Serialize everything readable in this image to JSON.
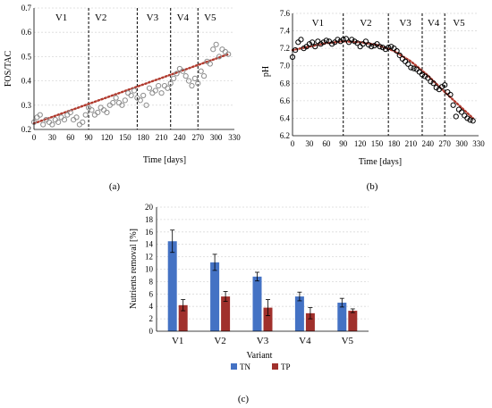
{
  "chart_data": [
    {
      "type": "scatter",
      "panel_label": "(a)",
      "ylabel": "FOS/TAC",
      "xlabel": "Time [days]",
      "xlim": [
        0,
        330
      ],
      "ylim": [
        0.2,
        0.7
      ],
      "xticks": [
        0,
        30,
        60,
        90,
        120,
        150,
        180,
        210,
        240,
        270,
        300,
        330
      ],
      "yticks": [
        0.2,
        0.3,
        0.4,
        0.5,
        0.6,
        0.7
      ],
      "grid": true,
      "marker_color": "#8c8c8c",
      "trend_color": "#b03a2e",
      "divider_positions": [
        90,
        170,
        225,
        270
      ],
      "variant_labels": [
        {
          "text": "V1",
          "x": 45
        },
        {
          "text": "V2",
          "x": 110
        },
        {
          "text": "V3",
          "x": 195
        },
        {
          "text": "V4",
          "x": 245
        },
        {
          "text": "V5",
          "x": 290
        }
      ],
      "trend": [
        [
          0,
          0.225
        ],
        [
          320,
          0.51
        ]
      ],
      "points": [
        [
          0,
          0.23
        ],
        [
          5,
          0.25
        ],
        [
          10,
          0.26
        ],
        [
          15,
          0.22
        ],
        [
          20,
          0.24
        ],
        [
          25,
          0.23
        ],
        [
          30,
          0.22
        ],
        [
          35,
          0.24
        ],
        [
          40,
          0.23
        ],
        [
          45,
          0.25
        ],
        [
          50,
          0.24
        ],
        [
          55,
          0.26
        ],
        [
          60,
          0.27
        ],
        [
          65,
          0.24
        ],
        [
          70,
          0.25
        ],
        [
          75,
          0.22
        ],
        [
          80,
          0.23
        ],
        [
          85,
          0.26
        ],
        [
          90,
          0.29
        ],
        [
          95,
          0.28
        ],
        [
          100,
          0.26
        ],
        [
          105,
          0.27
        ],
        [
          110,
          0.29
        ],
        [
          115,
          0.28
        ],
        [
          120,
          0.27
        ],
        [
          125,
          0.3
        ],
        [
          130,
          0.31
        ],
        [
          135,
          0.33
        ],
        [
          140,
          0.31
        ],
        [
          145,
          0.3
        ],
        [
          150,
          0.32
        ],
        [
          155,
          0.35
        ],
        [
          160,
          0.34
        ],
        [
          165,
          0.36
        ],
        [
          170,
          0.33
        ],
        [
          175,
          0.32
        ],
        [
          180,
          0.34
        ],
        [
          185,
          0.3
        ],
        [
          190,
          0.37
        ],
        [
          195,
          0.35
        ],
        [
          200,
          0.36
        ],
        [
          205,
          0.38
        ],
        [
          210,
          0.35
        ],
        [
          215,
          0.38
        ],
        [
          220,
          0.37
        ],
        [
          225,
          0.39
        ],
        [
          230,
          0.41
        ],
        [
          235,
          0.43
        ],
        [
          240,
          0.45
        ],
        [
          245,
          0.44
        ],
        [
          250,
          0.42
        ],
        [
          255,
          0.4
        ],
        [
          260,
          0.38
        ],
        [
          265,
          0.41
        ],
        [
          270,
          0.39
        ],
        [
          275,
          0.44
        ],
        [
          280,
          0.42
        ],
        [
          285,
          0.48
        ],
        [
          290,
          0.47
        ],
        [
          295,
          0.53
        ],
        [
          300,
          0.55
        ],
        [
          305,
          0.5
        ],
        [
          310,
          0.53
        ],
        [
          315,
          0.52
        ],
        [
          320,
          0.51
        ]
      ]
    },
    {
      "type": "scatter",
      "panel_label": "(b)",
      "ylabel": "pH",
      "xlabel": "Time [days]",
      "xlim": [
        0,
        330
      ],
      "ylim": [
        6.2,
        7.6
      ],
      "xticks": [
        0,
        30,
        60,
        90,
        120,
        150,
        180,
        210,
        240,
        270,
        300,
        330
      ],
      "yticks": [
        6.2,
        6.4,
        6.6,
        6.8,
        7.0,
        7.2,
        7.4,
        7.6
      ],
      "grid": true,
      "marker_color": "#000000",
      "trend_color": "#b03a2e",
      "divider_positions": [
        90,
        170,
        230,
        270
      ],
      "variant_labels": [
        {
          "text": "V1",
          "x": 45
        },
        {
          "text": "V2",
          "x": 130
        },
        {
          "text": "V3",
          "x": 200
        },
        {
          "text": "V4",
          "x": 250
        },
        {
          "text": "V5",
          "x": 295
        }
      ],
      "trend": [
        [
          0,
          7.18
        ],
        [
          30,
          7.22
        ],
        [
          60,
          7.26
        ],
        [
          90,
          7.28
        ],
        [
          120,
          7.27
        ],
        [
          150,
          7.24
        ],
        [
          180,
          7.17
        ],
        [
          210,
          7.05
        ],
        [
          240,
          6.89
        ],
        [
          270,
          6.7
        ],
        [
          300,
          6.52
        ],
        [
          320,
          6.4
        ]
      ],
      "points": [
        [
          0,
          7.1
        ],
        [
          5,
          7.18
        ],
        [
          10,
          7.27
        ],
        [
          15,
          7.3
        ],
        [
          20,
          7.2
        ],
        [
          25,
          7.22
        ],
        [
          30,
          7.25
        ],
        [
          35,
          7.27
        ],
        [
          40,
          7.22
        ],
        [
          45,
          7.28
        ],
        [
          50,
          7.25
        ],
        [
          55,
          7.27
        ],
        [
          60,
          7.29
        ],
        [
          65,
          7.28
        ],
        [
          70,
          7.25
        ],
        [
          75,
          7.27
        ],
        [
          80,
          7.3
        ],
        [
          85,
          7.28
        ],
        [
          90,
          7.3
        ],
        [
          95,
          7.31
        ],
        [
          100,
          7.27
        ],
        [
          105,
          7.3
        ],
        [
          110,
          7.28
        ],
        [
          115,
          7.26
        ],
        [
          120,
          7.22
        ],
        [
          125,
          7.25
        ],
        [
          130,
          7.28
        ],
        [
          135,
          7.24
        ],
        [
          140,
          7.22
        ],
        [
          145,
          7.23
        ],
        [
          150,
          7.25
        ],
        [
          155,
          7.22
        ],
        [
          160,
          7.21
        ],
        [
          165,
          7.19
        ],
        [
          170,
          7.21
        ],
        [
          175,
          7.22
        ],
        [
          180,
          7.2
        ],
        [
          185,
          7.17
        ],
        [
          190,
          7.12
        ],
        [
          195,
          7.08
        ],
        [
          200,
          7.05
        ],
        [
          205,
          7.02
        ],
        [
          210,
          6.98
        ],
        [
          215,
          6.97
        ],
        [
          220,
          6.96
        ],
        [
          225,
          6.93
        ],
        [
          230,
          6.9
        ],
        [
          235,
          6.88
        ],
        [
          240,
          6.86
        ],
        [
          245,
          6.82
        ],
        [
          250,
          6.8
        ],
        [
          255,
          6.75
        ],
        [
          260,
          6.73
        ],
        [
          265,
          6.76
        ],
        [
          270,
          6.78
        ],
        [
          275,
          6.7
        ],
        [
          280,
          6.67
        ],
        [
          285,
          6.55
        ],
        [
          290,
          6.42
        ],
        [
          295,
          6.5
        ],
        [
          300,
          6.47
        ],
        [
          305,
          6.43
        ],
        [
          310,
          6.4
        ],
        [
          315,
          6.38
        ],
        [
          320,
          6.37
        ]
      ]
    },
    {
      "type": "bar",
      "panel_label": "(c)",
      "ylabel": "Nutrients removal [%]",
      "xlabel": "Variant",
      "categories": [
        "V1",
        "V2",
        "V3",
        "V4",
        "V5"
      ],
      "ylim": [
        0,
        20
      ],
      "yticks": [
        0,
        2,
        4,
        6,
        8,
        10,
        12,
        14,
        16,
        18,
        20
      ],
      "grid": true,
      "legend_position": "bottom",
      "series": [
        {
          "name": "TN",
          "color": "#4472c4",
          "values": [
            14.5,
            11.1,
            8.8,
            5.6,
            4.6
          ],
          "errors": [
            1.8,
            1.3,
            0.7,
            0.7,
            0.7
          ]
        },
        {
          "name": "TP",
          "color": "#a0302c",
          "values": [
            4.2,
            5.6,
            3.8,
            2.9,
            3.3
          ],
          "errors": [
            0.9,
            0.8,
            1.3,
            0.9,
            0.3
          ]
        }
      ]
    }
  ]
}
